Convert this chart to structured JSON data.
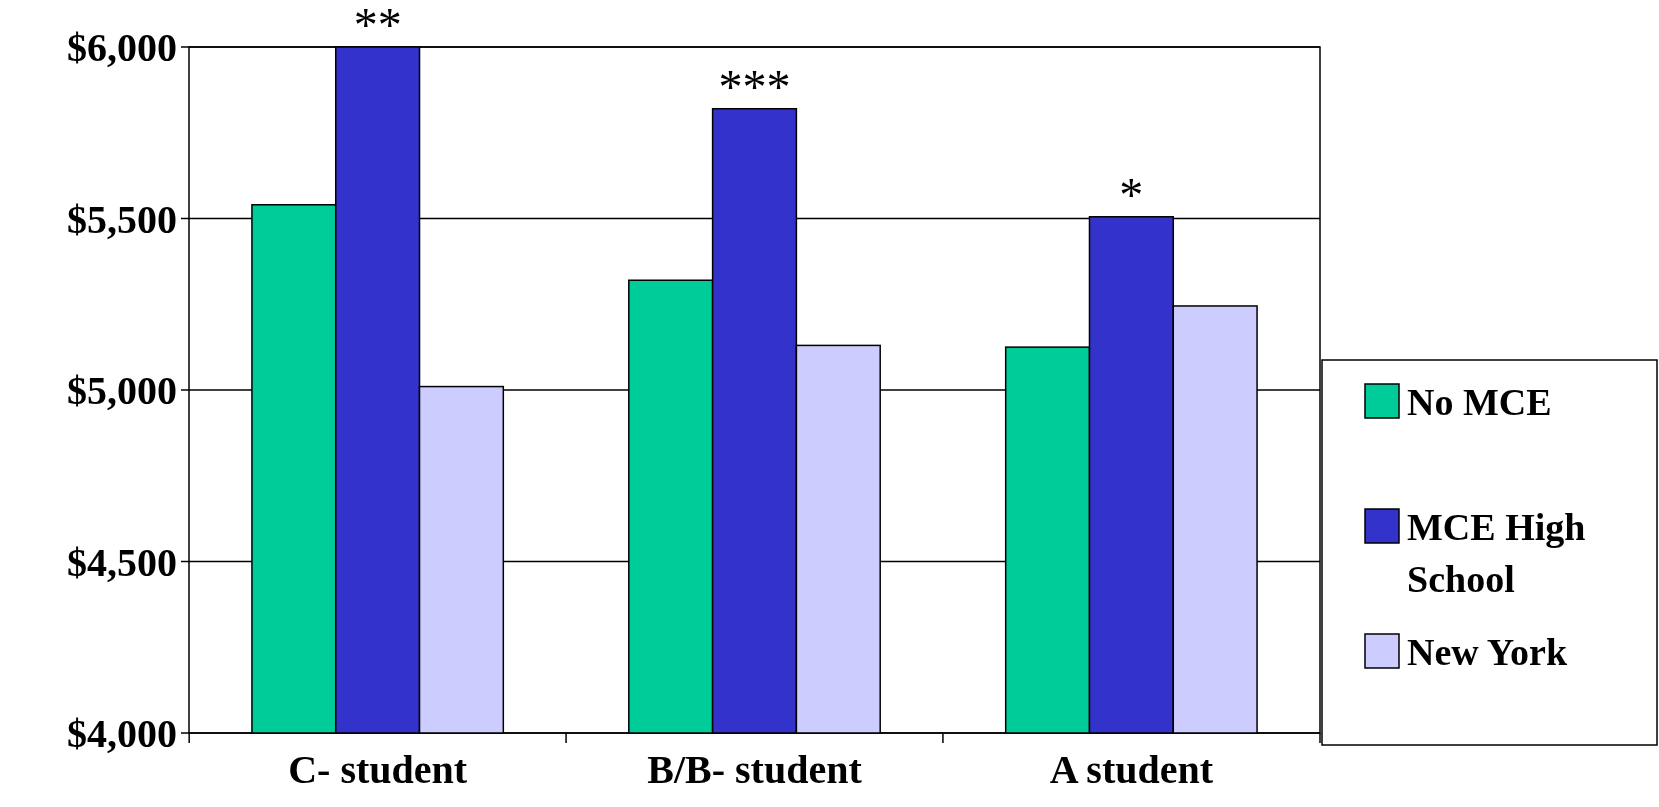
{
  "chart_data": {
    "type": "bar",
    "categories": [
      "C- student",
      "B/B- student",
      "A student"
    ],
    "series": [
      {
        "name": "No MCE",
        "color": "#00cc99",
        "values": [
          5540,
          5320,
          5125
        ]
      },
      {
        "name": "MCE High School",
        "color": "#3333cc",
        "values": [
          6000,
          5820,
          5505
        ]
      },
      {
        "name": "New York",
        "color": "#ccccff",
        "values": [
          5010,
          5130,
          5245
        ]
      }
    ],
    "ylim": [
      4000,
      6000
    ],
    "yticks": [
      {
        "value": 4000,
        "label": "$4,000"
      },
      {
        "value": 4500,
        "label": "$4,500"
      },
      {
        "value": 5000,
        "label": "$5,000"
      },
      {
        "value": 5500,
        "label": "$5,500"
      },
      {
        "value": 6000,
        "label": "$6,000"
      }
    ],
    "grid": "y",
    "legend": "right",
    "annotations": [
      {
        "text": "**",
        "x": "C- student",
        "y": 6000
      },
      {
        "text": "***",
        "x": "B/B- student",
        "y": 5820
      },
      {
        "text": "*",
        "x": "A student",
        "y": 5505
      }
    ]
  }
}
